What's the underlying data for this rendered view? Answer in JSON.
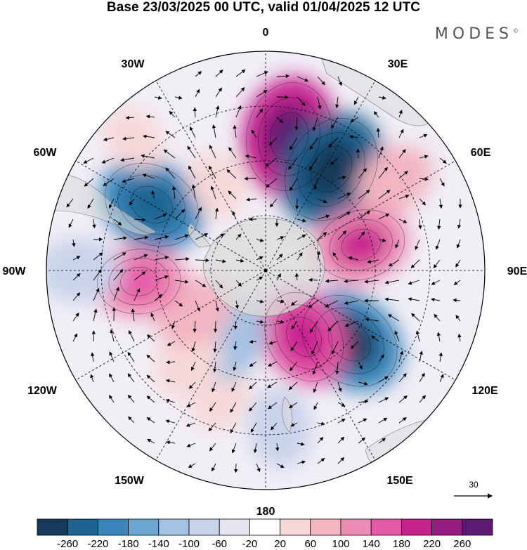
{
  "title": "Base 23/03/2025 00 UTC, valid 01/04/2025 12 UTC",
  "brand": "MODES",
  "brand_mark": "©",
  "meridian_labels": {
    "lon_0": "0",
    "lon_30e": "30E",
    "lon_60e": "60E",
    "lon_90e": "90E",
    "lon_120e": "120E",
    "lon_150e": "150E",
    "lon_180": "180",
    "lon_150w": "150W",
    "lon_120w": "120W",
    "lon_90w": "90W",
    "lon_60w": "60W",
    "lon_30w": "30W"
  },
  "reference_vector": {
    "value": "30"
  },
  "colorbar": {
    "colors": [
      "#163a59",
      "#1f6391",
      "#3a86bb",
      "#6aa6d1",
      "#a4c2e2",
      "#c9d3ea",
      "#e5e5f1",
      "#ffffff",
      "#f7d8d8",
      "#f2b5c2",
      "#ed8cb4",
      "#e55aa7",
      "#c7238f",
      "#961e82",
      "#5c1a72"
    ],
    "tick_labels": [
      "-260",
      "-220",
      "-180",
      "-140",
      "-100",
      "-60",
      "-20",
      "20",
      "60",
      "100",
      "140",
      "180",
      "220",
      "260"
    ]
  },
  "anomaly_cells": [
    {
      "lon": 10,
      "colat": 0.62,
      "v": 220
    },
    {
      "lon": 33,
      "colat": 0.55,
      "v": -220
    },
    {
      "lon": 55,
      "colat": 0.72,
      "v": 80
    },
    {
      "lon": 75,
      "colat": 0.45,
      "v": 140
    },
    {
      "lon": 130,
      "colat": 0.5,
      "v": -200
    },
    {
      "lon": 150,
      "colat": 0.35,
      "v": 160
    },
    {
      "lon": 175,
      "colat": 0.72,
      "v": -80
    },
    {
      "lon": 200,
      "colat": 0.6,
      "v": 60
    },
    {
      "lon": 208,
      "colat": 0.35,
      "v": -110
    },
    {
      "lon": 220,
      "colat": 0.55,
      "v": 60
    },
    {
      "lon": 240,
      "colat": 0.38,
      "v": 90
    },
    {
      "lon": 265,
      "colat": 0.58,
      "v": 120
    },
    {
      "lon": 270,
      "colat": 0.85,
      "v": -90
    },
    {
      "lon": 300,
      "colat": 0.6,
      "v": -180
    },
    {
      "lon": 315,
      "colat": 0.85,
      "v": 40
    },
    {
      "lon": 330,
      "colat": 0.45,
      "v": 40
    }
  ]
}
